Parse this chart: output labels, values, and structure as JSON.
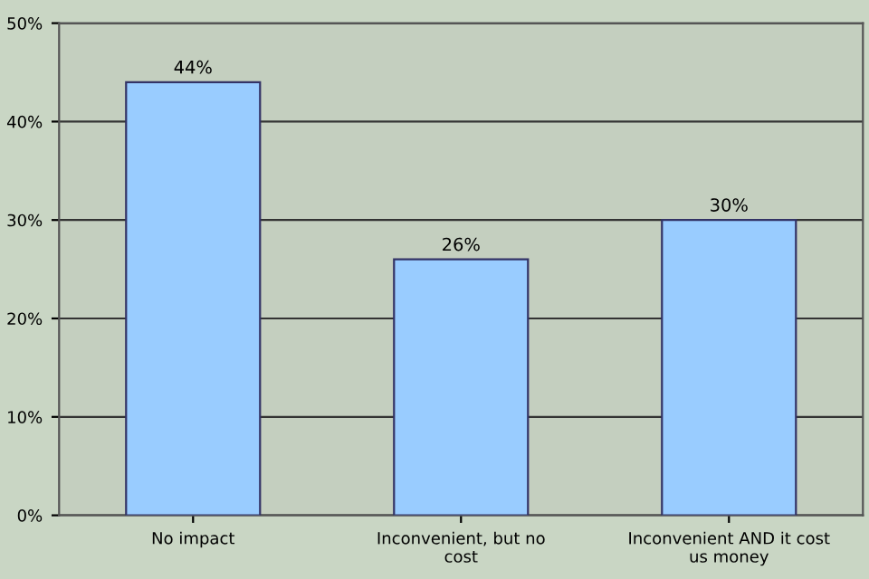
{
  "chart_data": {
    "type": "bar",
    "categories": [
      "No impact",
      "Inconvenient, but no cost",
      "Inconvenient AND it cost us money"
    ],
    "values": [
      44,
      26,
      30
    ],
    "color": "#99ccff",
    "value_labels": [
      "44%",
      "26%",
      "30%"
    ],
    "ylim": [
      0,
      50
    ],
    "yticks": [
      {
        "value": 0,
        "label": "0%"
      },
      {
        "value": 10,
        "label": "10%"
      },
      {
        "value": 20,
        "label": "20%"
      },
      {
        "value": 30,
        "label": "30%"
      },
      {
        "value": 40,
        "label": "40%"
      },
      {
        "value": 50,
        "label": "50%"
      }
    ],
    "grid": "y"
  }
}
